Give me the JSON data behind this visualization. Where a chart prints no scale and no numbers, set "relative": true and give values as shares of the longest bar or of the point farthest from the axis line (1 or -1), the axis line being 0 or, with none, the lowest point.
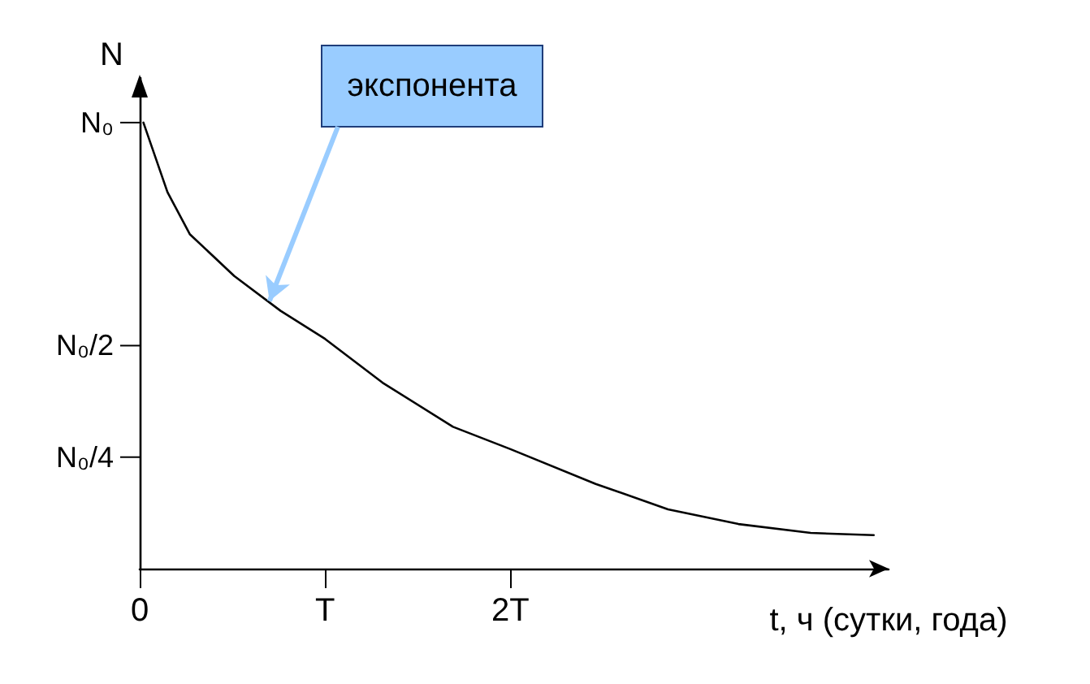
{
  "chart_data": {
    "type": "line",
    "xlabel": "t, ч (сутки, года)",
    "ylabel": "N",
    "relative": true,
    "x": [
      0.02,
      0.15,
      0.27,
      0.51,
      0.76,
      1,
      1.31,
      1.69,
      2,
      2.46,
      2.85,
      3.23,
      3.62,
      3.96
    ],
    "series": [
      {
        "color": "#000000",
        "values": [
          1,
          0.844,
          0.75,
          0.656,
          0.578,
          0.515,
          0.417,
          0.318,
          0.268,
          0.19,
          0.133,
          0.1,
          0.08,
          0.075
        ]
      }
    ],
    "xlim": [
      0,
      4.04
    ],
    "xticks": [
      {
        "value": 0,
        "label": "0"
      },
      {
        "value": 1,
        "label": "T"
      },
      {
        "value": 2,
        "label": "2T"
      }
    ],
    "annotations": [
      {
        "text": "экспонента",
        "x": 0.7,
        "y": 0.6
      }
    ],
    "ref_lines": [
      {
        "axis": "y",
        "value": 1,
        "label": "N₀"
      },
      {
        "axis": "y",
        "value": 0.5,
        "label": "N₀/2"
      },
      {
        "axis": "y",
        "value": 0.25,
        "label": "N₀/4"
      }
    ],
    "grid": false,
    "marker": "none",
    "line_style": "solid"
  }
}
